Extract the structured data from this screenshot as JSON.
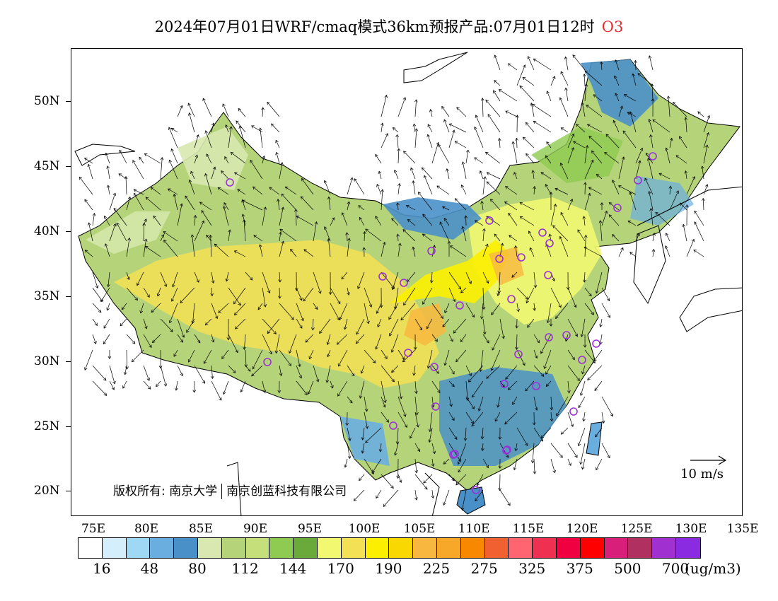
{
  "title": {
    "text": "2024年07月01日WRF/cmaq模式36km预报产品:07月01日12时",
    "species": "O3"
  },
  "map": {
    "lat_labels": [
      "50N",
      "45N",
      "40N",
      "35N",
      "30N",
      "25N",
      "20N"
    ],
    "lon_labels": [
      "75E",
      "80E",
      "85E",
      "90E",
      "95E",
      "100E",
      "105E",
      "110E",
      "115E",
      "120E",
      "125E",
      "130E",
      "135E"
    ],
    "copyright": {
      "prefix": "版权所有:",
      "org1": "南京大学",
      "org2": "南京创蓝科技有限公司"
    },
    "reference_vector_label": "10 m/s",
    "station_marker_color": "#9b30d9"
  },
  "colorbar": {
    "colors": [
      "#ffffff",
      "#d4eefb",
      "#9fd8f4",
      "#6aaee0",
      "#4a90c8",
      "#d8e8b0",
      "#b5d47a",
      "#c5e07a",
      "#8ecb50",
      "#6aaa3a",
      "#f2f870",
      "#f4e055",
      "#fcf000",
      "#f8d800",
      "#f8b840",
      "#f8a828",
      "#f88800",
      "#f06030",
      "#ff6470",
      "#f03050",
      "#f00040",
      "#ff0000",
      "#d8207a",
      "#b03060",
      "#a030d0",
      "#8a2be2"
    ],
    "labels": [
      "16",
      "48",
      "80",
      "112",
      "144",
      "170",
      "190",
      "225",
      "275",
      "325",
      "375",
      "500",
      "700"
    ],
    "units": "(ug/m3)"
  }
}
